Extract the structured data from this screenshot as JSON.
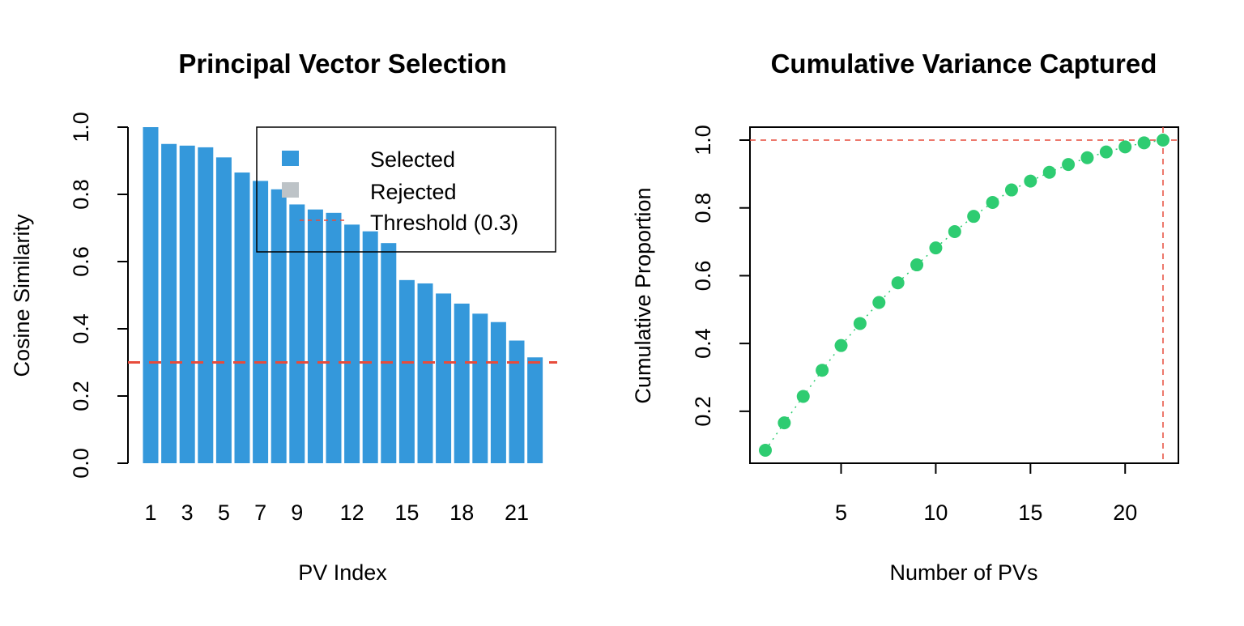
{
  "chart_data": [
    {
      "type": "bar",
      "title": "Principal Vector Selection",
      "xlabel": "PV Index",
      "ylabel": "Cosine Similarity",
      "ylim": [
        0,
        1
      ],
      "y_ticks": [
        "0.0",
        "0.2",
        "0.4",
        "0.6",
        "0.8",
        "1.0"
      ],
      "x_tick_labels": [
        {
          "index": 1,
          "label": "1"
        },
        {
          "index": 3,
          "label": "3"
        },
        {
          "index": 5,
          "label": "5"
        },
        {
          "index": 7,
          "label": "7"
        },
        {
          "index": 9,
          "label": "9"
        },
        {
          "index": 12,
          "label": "12"
        },
        {
          "index": 15,
          "label": "15"
        },
        {
          "index": 18,
          "label": "18"
        },
        {
          "index": 21,
          "label": "21"
        }
      ],
      "categories": [
        1,
        2,
        3,
        4,
        5,
        6,
        7,
        8,
        9,
        10,
        11,
        12,
        13,
        14,
        15,
        16,
        17,
        18,
        19,
        20,
        21,
        22
      ],
      "values": [
        1.0,
        0.95,
        0.945,
        0.94,
        0.91,
        0.865,
        0.84,
        0.815,
        0.77,
        0.755,
        0.745,
        0.71,
        0.69,
        0.655,
        0.545,
        0.535,
        0.505,
        0.475,
        0.445,
        0.42,
        0.365,
        0.315
      ],
      "threshold": 0.3,
      "colors": {
        "selected": "#3498db",
        "rejected": "#bdc3c7",
        "threshold": "#e74c3c"
      },
      "legend": {
        "position": "top-right",
        "entries": [
          {
            "label": "Selected",
            "symbol": "square",
            "color": "#3498db"
          },
          {
            "label": "Rejected",
            "symbol": "square",
            "color": "#bdc3c7"
          },
          {
            "label": "Threshold (0.3)",
            "symbol": "dashed-line",
            "color": "#e74c3c"
          }
        ]
      }
    },
    {
      "type": "scatter",
      "title": "Cumulative Variance Captured",
      "xlabel": "Number of PVs",
      "ylabel": "Cumulative Proportion",
      "xlim": [
        1,
        22
      ],
      "ylim": [
        0.085,
        1.0
      ],
      "x_ticks": [
        "5",
        "10",
        "15",
        "20"
      ],
      "y_ticks": [
        "0.2",
        "0.4",
        "0.6",
        "0.8",
        "1.0"
      ],
      "x": [
        1,
        2,
        3,
        4,
        5,
        6,
        7,
        8,
        9,
        10,
        11,
        12,
        13,
        14,
        15,
        16,
        17,
        18,
        19,
        20,
        21,
        22
      ],
      "y": [
        0.085,
        0.166,
        0.244,
        0.321,
        0.394,
        0.459,
        0.521,
        0.579,
        0.632,
        0.682,
        0.73,
        0.775,
        0.816,
        0.853,
        0.879,
        0.905,
        0.928,
        0.948,
        0.965,
        0.98,
        0.992,
        1.0
      ],
      "point_color": "#2ecc71",
      "reference_lines": {
        "y": 1.0,
        "x": 22,
        "color": "#e74c3c"
      }
    }
  ]
}
